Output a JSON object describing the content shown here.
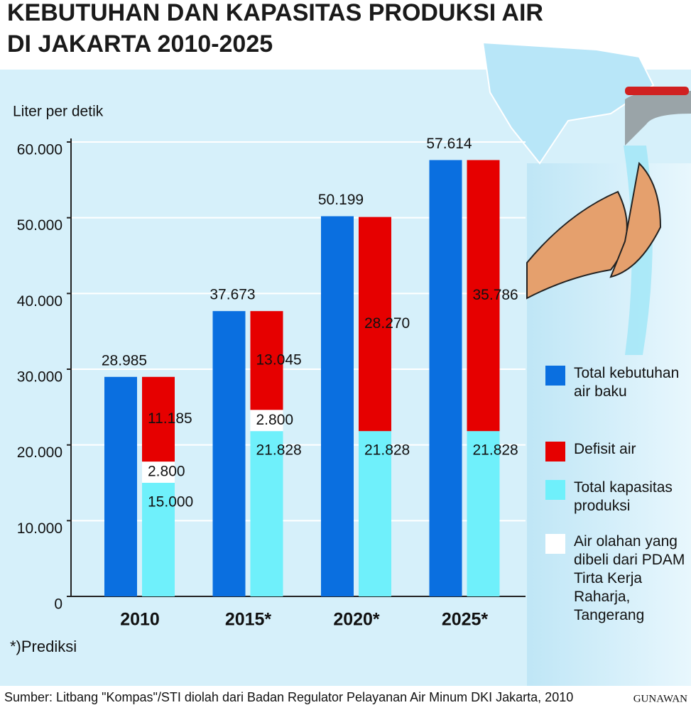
{
  "chart_data": {
    "type": "bar",
    "title": [
      "KEBUTUHAN DAN KAPASITAS PRODUKSI AIR",
      "DI JAKARTA  2010-2025"
    ],
    "y_label": "Liter per detik",
    "categories": [
      "2010",
      "2015*",
      "2020*",
      "2025*"
    ],
    "series": [
      {
        "name": "Total kebutuhan air baku",
        "color": "#0a6fe0",
        "values": [
          28985,
          37673,
          50199,
          57614
        ],
        "value_labels": [
          "28.985",
          "37.673",
          "50.199",
          "57.614"
        ]
      },
      {
        "name": "Total kapasitas produksi",
        "color": "#6ff0fb",
        "values": [
          15000,
          21828,
          21828,
          21828
        ],
        "value_labels": [
          "15.000",
          "21.828",
          "21.828",
          "21.828"
        ]
      },
      {
        "name": "Air olahan yang dibeli dari PDAM Tirta Kerja Raharja, Tangerang",
        "color": "#ffffff",
        "values": [
          2800,
          2800,
          null,
          null
        ],
        "value_labels": [
          "2.800",
          "2.800",
          null,
          null
        ]
      },
      {
        "name": "Defisit air",
        "color": "#e60000",
        "values": [
          11185,
          13045,
          28270,
          35786
        ],
        "value_labels": [
          "11.185",
          "13.045",
          "28.270",
          "35.786"
        ]
      }
    ],
    "ylim": [
      0,
      60000
    ],
    "yticks": [
      0,
      {
        "value": 10000,
        "label": "10.000"
      },
      {
        "value": 20000,
        "label": "20.000"
      },
      {
        "value": 30000,
        "label": "30.000"
      },
      {
        "value": 40000,
        "label": "40.000"
      },
      {
        "value": 50000,
        "label": "50.000"
      },
      {
        "value": 60000,
        "label": "60.000"
      }
    ],
    "grid": true,
    "note": "*)Prediksi",
    "source": "Sumber: Litbang \"Kompas\"/STI diolah dari Badan Regulator Pelayanan Air Minum DKI Jakarta, 2010",
    "credit": "GUNAWAN"
  }
}
